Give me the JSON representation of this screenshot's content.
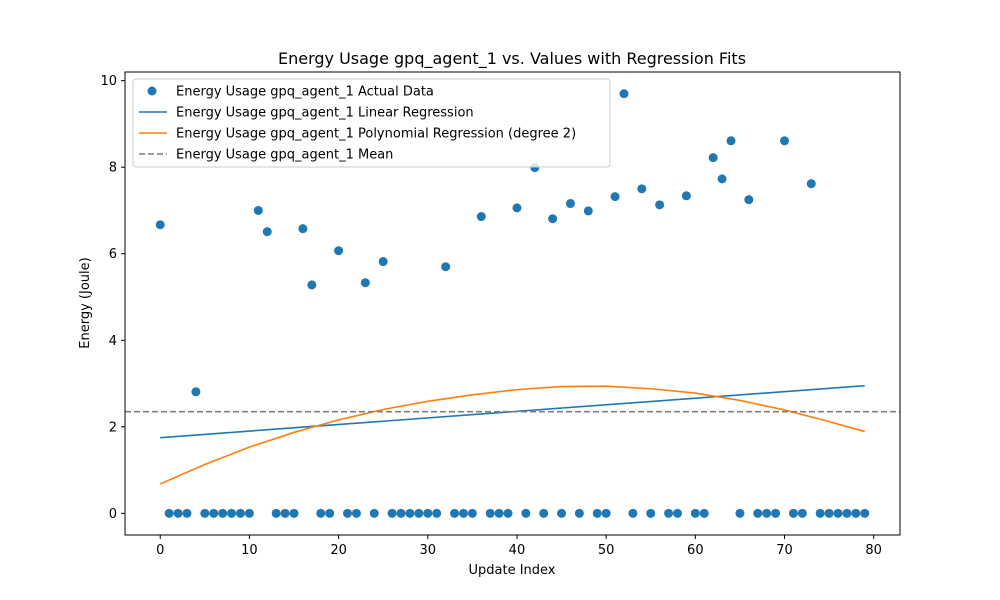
{
  "chart_data": {
    "type": "scatter",
    "title": "Energy Usage gpq_agent_1 vs. Values with Regression Fits",
    "xlabel": "Update Index",
    "ylabel": "Energy (Joule)",
    "xlim": [
      -3.95,
      82.95
    ],
    "ylim": [
      -0.5,
      10.2
    ],
    "xticks": [
      0,
      10,
      20,
      30,
      40,
      50,
      60,
      70,
      80
    ],
    "yticks": [
      0,
      2,
      4,
      6,
      8,
      10
    ],
    "grid": false,
    "legend_position": "top-left",
    "colors": {
      "actual": "#1f77b4",
      "linear": "#1f77b4",
      "poly": "#ff7f0e",
      "mean": "#7f7f7f"
    },
    "series": [
      {
        "name": "Energy Usage gpq_agent_1 Actual Data",
        "kind": "scatter",
        "x": [
          0,
          1,
          2,
          3,
          4,
          5,
          6,
          7,
          8,
          9,
          10,
          11,
          12,
          13,
          14,
          15,
          16,
          17,
          18,
          19,
          20,
          21,
          22,
          23,
          24,
          25,
          26,
          27,
          28,
          29,
          30,
          31,
          32,
          33,
          34,
          35,
          36,
          37,
          38,
          39,
          40,
          41,
          42,
          43,
          44,
          45,
          46,
          47,
          48,
          49,
          50,
          51,
          52,
          53,
          54,
          55,
          56,
          57,
          58,
          59,
          60,
          61,
          62,
          63,
          64,
          65,
          66,
          67,
          68,
          69,
          70,
          71,
          72,
          73,
          74,
          75,
          76,
          77,
          78,
          79
        ],
        "y": [
          6.67,
          0,
          0,
          0,
          2.81,
          0,
          0,
          0,
          0,
          0,
          0,
          7.0,
          6.51,
          0,
          0,
          0,
          6.58,
          5.28,
          0,
          0,
          6.07,
          0,
          0,
          5.33,
          0,
          5.82,
          0,
          0,
          0,
          0,
          0,
          0,
          5.7,
          0,
          0,
          0,
          6.86,
          0,
          0,
          0,
          7.06,
          0,
          7.99,
          0,
          6.81,
          0,
          7.16,
          0,
          6.99,
          0,
          0,
          7.32,
          9.7,
          0,
          7.5,
          0,
          7.13,
          0,
          0,
          7.34,
          0,
          0,
          8.22,
          7.73,
          8.61,
          0,
          7.25,
          0,
          0,
          0,
          8.61,
          0,
          0,
          7.62,
          0,
          0,
          0,
          0,
          0,
          0
        ]
      },
      {
        "name": "Energy Usage gpq_agent_1 Linear Regression",
        "kind": "line",
        "x": [
          0,
          79
        ],
        "y": [
          1.75,
          2.95
        ]
      },
      {
        "name": "Energy Usage gpq_agent_1 Polynomial Regression (degree 2)",
        "kind": "line",
        "x": [
          0,
          5,
          10,
          15,
          20,
          25,
          30,
          35,
          40,
          45,
          50,
          55,
          60,
          65,
          70,
          75,
          79
        ],
        "y": [
          0.68,
          1.13,
          1.53,
          1.87,
          2.16,
          2.4,
          2.59,
          2.74,
          2.86,
          2.93,
          2.94,
          2.88,
          2.78,
          2.61,
          2.39,
          2.12,
          1.89
        ]
      },
      {
        "name": "Energy Usage gpq_agent_1 Mean",
        "kind": "hline",
        "y": 2.35
      }
    ]
  }
}
